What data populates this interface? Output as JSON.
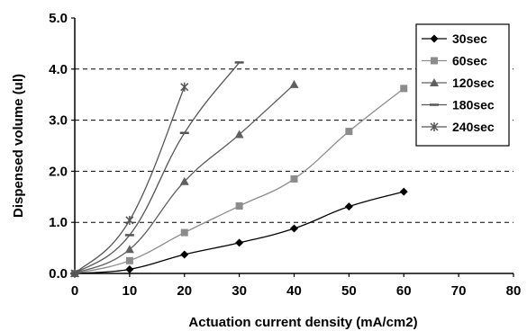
{
  "chart_data": {
    "type": "line",
    "title": "",
    "xlabel": "Actuation current density (mA/cm2)",
    "ylabel": "Dispensed volume (ul)",
    "xlim": [
      0,
      80
    ],
    "ylim": [
      0,
      5
    ],
    "x_ticks": [
      "0",
      "10",
      "20",
      "30",
      "40",
      "50",
      "60",
      "70",
      "80"
    ],
    "y_ticks": [
      "0.0",
      "1.0",
      "2.0",
      "3.0",
      "4.0",
      "5.0"
    ],
    "grid": "horizontal-dashed",
    "legend_position": "top-right",
    "series": [
      {
        "name": "30sec",
        "marker": "diamond",
        "color": "#000000",
        "x": [
          0,
          10,
          20,
          30,
          40,
          50,
          60
        ],
        "y": [
          0.0,
          0.08,
          0.37,
          0.6,
          0.88,
          1.31,
          1.6
        ]
      },
      {
        "name": "60sec",
        "marker": "square",
        "color": "#8c8c8c",
        "x": [
          0,
          10,
          20,
          30,
          40,
          50,
          60
        ],
        "y": [
          0.0,
          0.25,
          0.8,
          1.32,
          1.85,
          2.78,
          3.62
        ]
      },
      {
        "name": "120sec",
        "marker": "triangle",
        "color": "#606060",
        "x": [
          0,
          10,
          20,
          30,
          40
        ],
        "y": [
          0.0,
          0.47,
          1.8,
          2.72,
          3.7
        ]
      },
      {
        "name": "180sec",
        "marker": "dash",
        "color": "#555555",
        "x": [
          0,
          10,
          20,
          30
        ],
        "y": [
          0.0,
          0.75,
          2.75,
          4.13
        ]
      },
      {
        "name": "240sec",
        "marker": "star",
        "color": "#555555",
        "x": [
          0,
          10,
          20
        ],
        "y": [
          0.0,
          1.04,
          3.65
        ]
      }
    ]
  }
}
